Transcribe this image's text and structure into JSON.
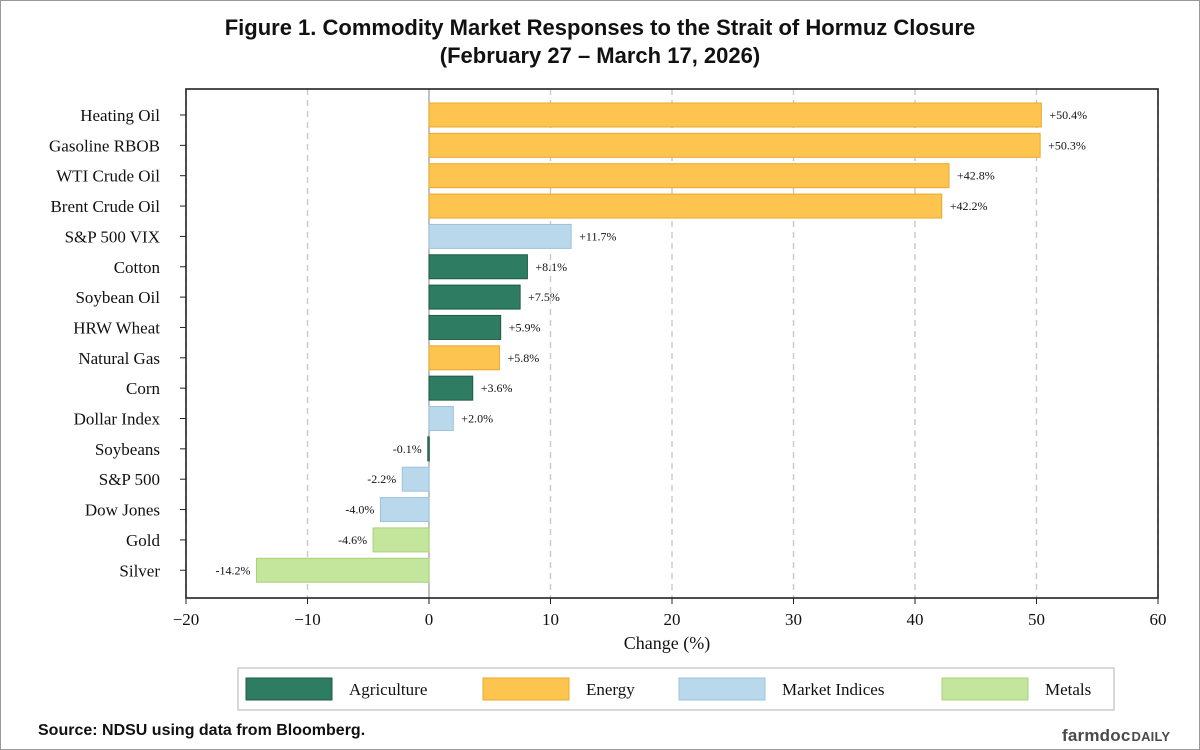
{
  "title": {
    "line1": "Figure 1. Commodity Market Responses to the Strait of Hormuz Closure",
    "line2": "(February 27 – March 17, 2026)"
  },
  "colors": {
    "Agriculture": "#2e7d63",
    "Energy": "#fdc44f",
    "Market Indices": "#b9d8ec",
    "Metals": "#c4e59c"
  },
  "chart_data": {
    "type": "bar",
    "orientation": "horizontal",
    "xlabel": "Change (%)",
    "xlim": [
      -20,
      60
    ],
    "xticks": [
      -20,
      -10,
      0,
      10,
      20,
      30,
      40,
      50,
      60
    ],
    "grid": "vertical dashed",
    "categories": [
      "Heating Oil",
      "Gasoline RBOB",
      "WTI Crude Oil",
      "Brent Crude Oil",
      "S&P 500 VIX",
      "Cotton",
      "Soybean Oil",
      "HRW Wheat",
      "Natural Gas",
      "Corn",
      "Dollar Index",
      "Soybeans",
      "S&P 500",
      "Dow Jones",
      "Gold",
      "Silver"
    ],
    "values": [
      50.4,
      50.3,
      42.8,
      42.2,
      11.7,
      8.1,
      7.5,
      5.9,
      5.8,
      3.6,
      2.0,
      -0.1,
      -2.2,
      -4.0,
      -4.6,
      -14.2
    ],
    "labels": [
      "+50.4%",
      "+50.3%",
      "+42.8%",
      "+42.2%",
      "+11.7%",
      "+8.1%",
      "+7.5%",
      "+5.9%",
      "+5.8%",
      "+3.6%",
      "+2.0%",
      "-0.1%",
      "-2.2%",
      "-4.0%",
      "-4.6%",
      "-14.2%"
    ],
    "groups": [
      "Energy",
      "Energy",
      "Energy",
      "Energy",
      "Market Indices",
      "Agriculture",
      "Agriculture",
      "Agriculture",
      "Energy",
      "Agriculture",
      "Market Indices",
      "Agriculture",
      "Market Indices",
      "Market Indices",
      "Metals",
      "Metals"
    ],
    "legend": [
      "Agriculture",
      "Energy",
      "Market Indices",
      "Metals"
    ],
    "legend_position": "bottom"
  },
  "source": "Source: NDSU using data from Bloomberg.",
  "brand": {
    "part1": "farmdoc",
    "part2": "DAILY"
  }
}
